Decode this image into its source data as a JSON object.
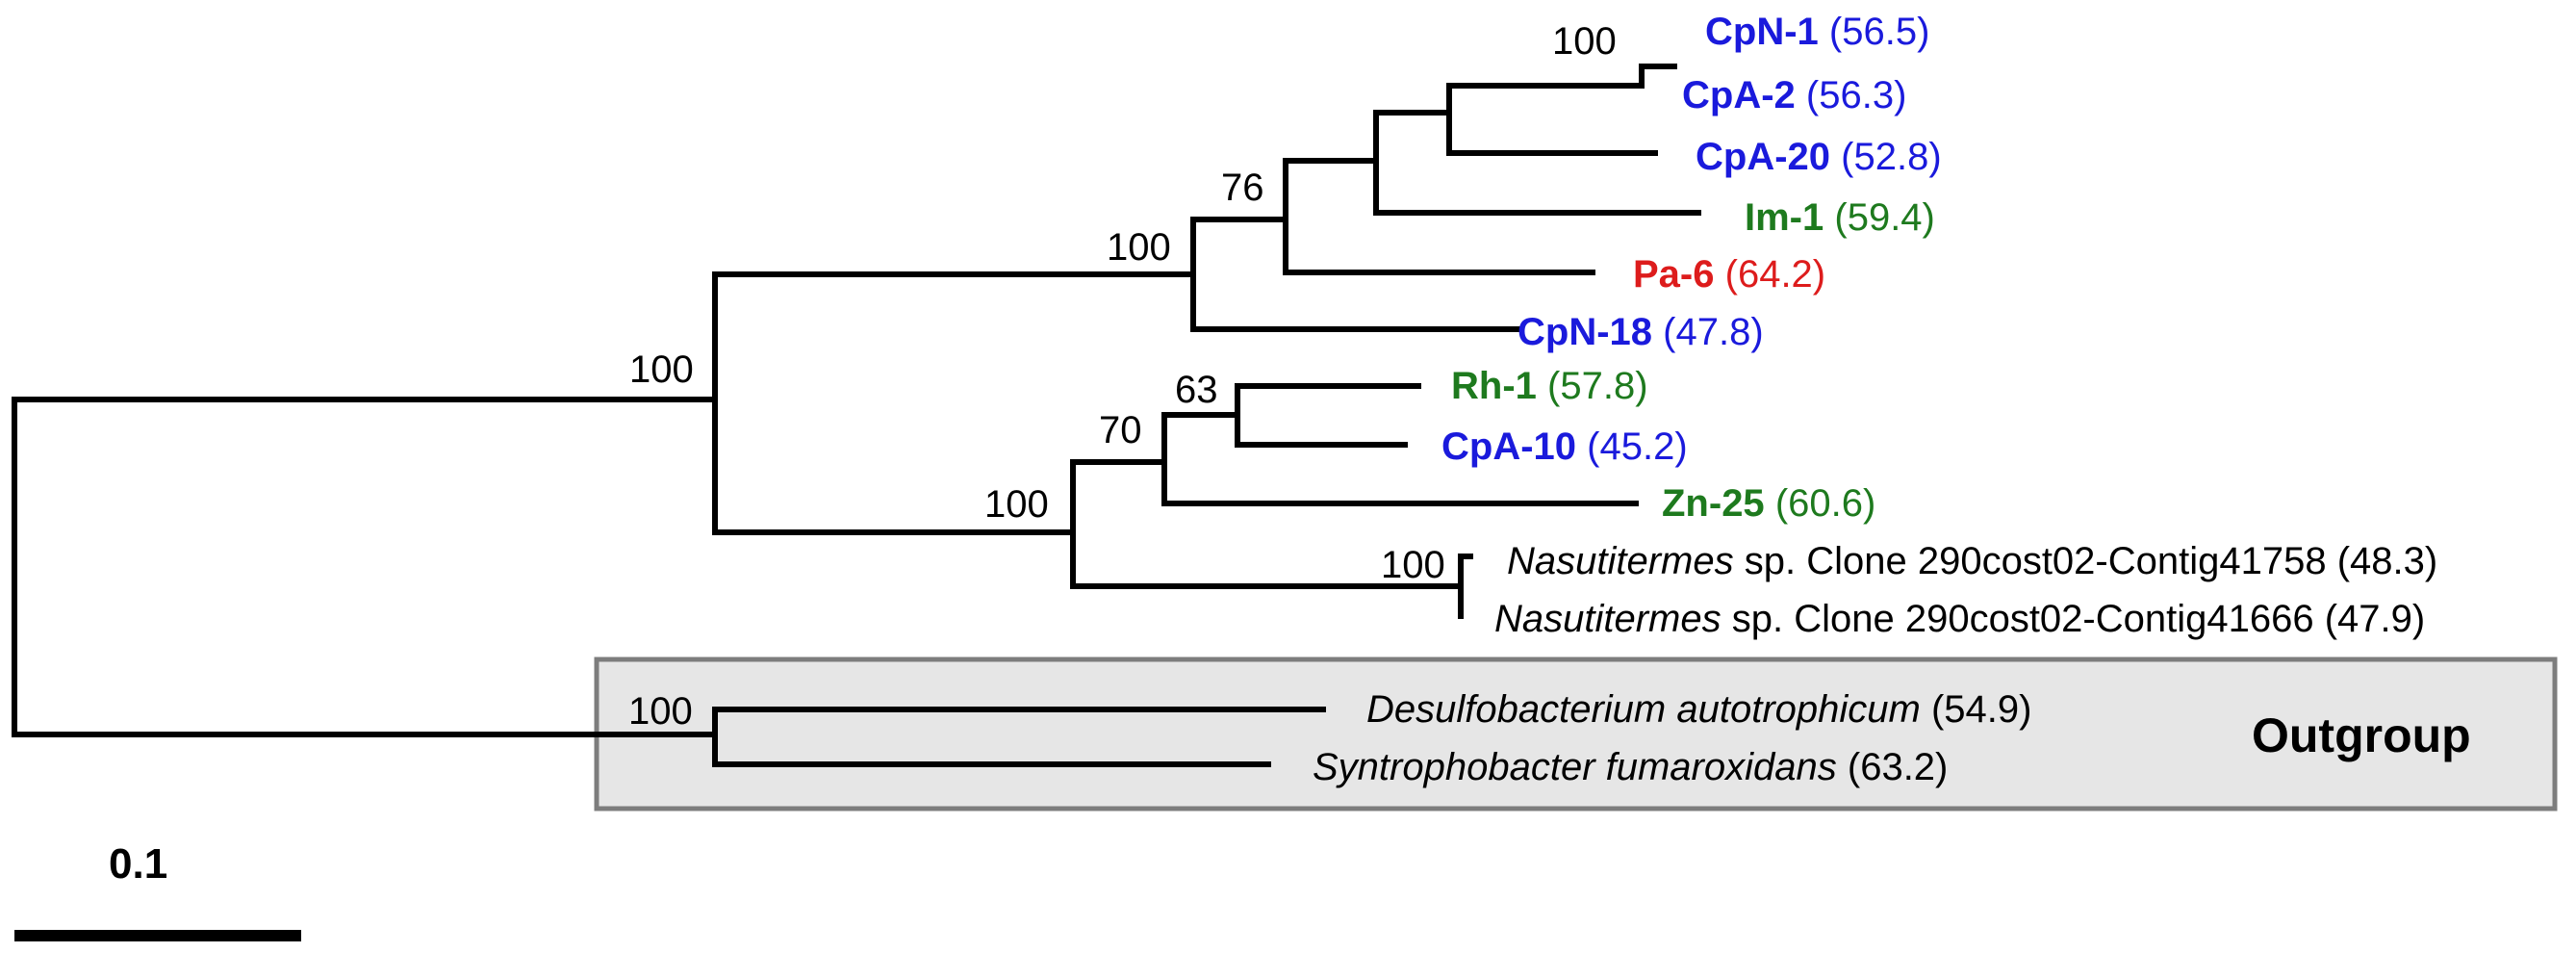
{
  "colors": {
    "blue": "#1a1adc",
    "green": "#1e7a1e",
    "red": "#dd1c1c",
    "black": "#000000",
    "outgroup_fill": "#e6e6e6",
    "outgroup_border": "#7d7d7d"
  },
  "bootstrap": {
    "cpn1_cpa2": "100",
    "top_clade": "76",
    "cpn18_group": "100",
    "ingroup": "100",
    "rh1_cpa10": "63",
    "zn25_group": "70",
    "lower_clade": "100",
    "nasutitermes": "100",
    "outgroup": "100"
  },
  "taxa": [
    {
      "name": "CpN-1",
      "value": "(56.5)",
      "color": "blue",
      "style": "bold"
    },
    {
      "name": "CpA-2",
      "value": "(56.3)",
      "color": "blue",
      "style": "bold"
    },
    {
      "name": "CpA-20",
      "value": "(52.8)",
      "color": "blue",
      "style": "bold"
    },
    {
      "name": "Im-1",
      "value": "(59.4)",
      "color": "green",
      "style": "bold"
    },
    {
      "name": "Pa-6",
      "value": "(64.2)",
      "color": "red",
      "style": "bold"
    },
    {
      "name": "CpN-18",
      "value": "(47.8)",
      "color": "blue",
      "style": "bold"
    },
    {
      "name": "Rh-1",
      "value": "(57.8)",
      "color": "green",
      "style": "bold"
    },
    {
      "name": "CpA-10",
      "value": "(45.2)",
      "color": "blue",
      "style": "bold"
    },
    {
      "name": "Zn-25",
      "value": "(60.6)",
      "color": "green",
      "style": "bold"
    },
    {
      "genus": "Nasutitermes",
      "rest": " sp. Clone 290cost02-Contig41758",
      "value": "(48.3)",
      "color": "black",
      "style": "genus"
    },
    {
      "genus": "Nasutitermes",
      "rest": " sp. Clone 290cost02-Contig41666",
      "value": "(47.9)",
      "color": "black",
      "style": "genus"
    },
    {
      "name": "Desulfobacterium autotrophicum",
      "value": "(54.9)",
      "color": "black",
      "style": "italic"
    },
    {
      "name": "Syntrophobacter fumaroxidans",
      "value": "(63.2)",
      "color": "black",
      "style": "italic"
    }
  ],
  "outgroup_label": "Outgroup",
  "scale_bar": {
    "label": "0.1",
    "length": 0.1
  }
}
